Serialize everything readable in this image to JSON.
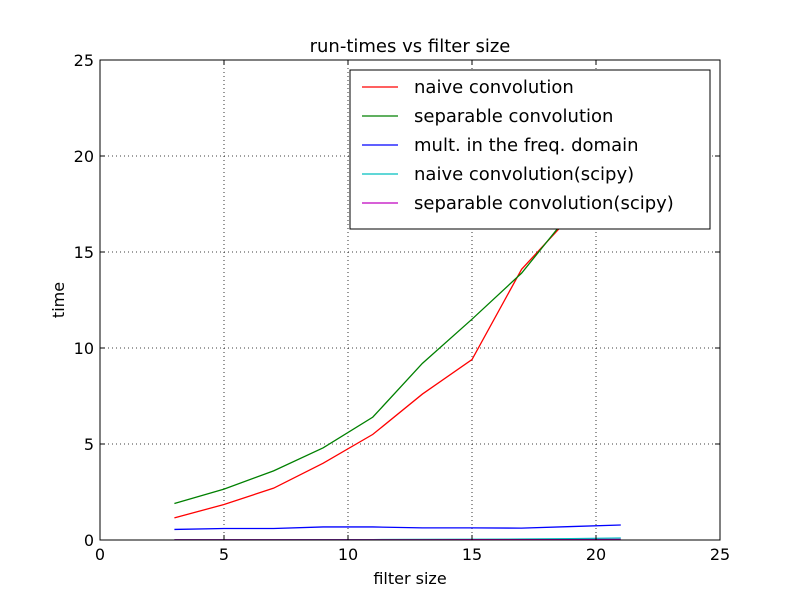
{
  "chart_data": {
    "type": "line",
    "title": "run-times vs filter size",
    "xlabel": "filter size",
    "ylabel": "time",
    "xlim": [
      0,
      25
    ],
    "ylim": [
      0,
      25
    ],
    "xticks": [
      0,
      5,
      10,
      15,
      20,
      25
    ],
    "yticks": [
      0,
      5,
      10,
      15,
      20,
      25
    ],
    "x_tick_labels": [
      "0",
      "5",
      "10",
      "15",
      "20",
      "25"
    ],
    "y_tick_labels": [
      "0",
      "5",
      "10",
      "15",
      "20",
      "25"
    ],
    "grid": true,
    "legend_position": "top-right",
    "series": [
      {
        "name": "naive convolution",
        "color": "#ff0000",
        "x": [
          3,
          5,
          7,
          9,
          11,
          13,
          15,
          17,
          19,
          21
        ],
        "y": [
          1.15,
          1.85,
          2.7,
          4.0,
          5.5,
          7.6,
          9.4,
          14.1,
          16.9,
          19.2
        ]
      },
      {
        "name": "separable convolution",
        "color": "#008000",
        "x": [
          3,
          5,
          7,
          9,
          11,
          13,
          15,
          17,
          19,
          21
        ],
        "y": [
          1.9,
          2.65,
          3.6,
          4.8,
          6.4,
          9.2,
          11.5,
          13.9,
          17.1,
          19.4
        ]
      },
      {
        "name": "mult. in the freq. domain",
        "color": "#0000ff",
        "x": [
          3,
          5,
          7,
          9,
          11,
          13,
          15,
          17,
          19,
          21
        ],
        "y": [
          0.55,
          0.6,
          0.6,
          0.68,
          0.68,
          0.63,
          0.63,
          0.62,
          0.7,
          0.78
        ]
      },
      {
        "name": "naive convolution(scipy)",
        "color": "#00bfbf",
        "x": [
          3,
          5,
          7,
          9,
          11,
          13,
          15,
          17,
          19,
          21
        ],
        "y": [
          0.01,
          0.01,
          0.01,
          0.02,
          0.02,
          0.03,
          0.04,
          0.05,
          0.07,
          0.1
        ]
      },
      {
        "name": "separable convolution(scipy)",
        "color": "#bf00bf",
        "x": [
          3,
          5,
          7,
          9,
          11,
          13,
          15,
          17,
          19,
          21
        ],
        "y": [
          0.01,
          0.01,
          0.01,
          0.01,
          0.01,
          0.01,
          0.02,
          0.02,
          0.02,
          0.03
        ]
      }
    ]
  }
}
